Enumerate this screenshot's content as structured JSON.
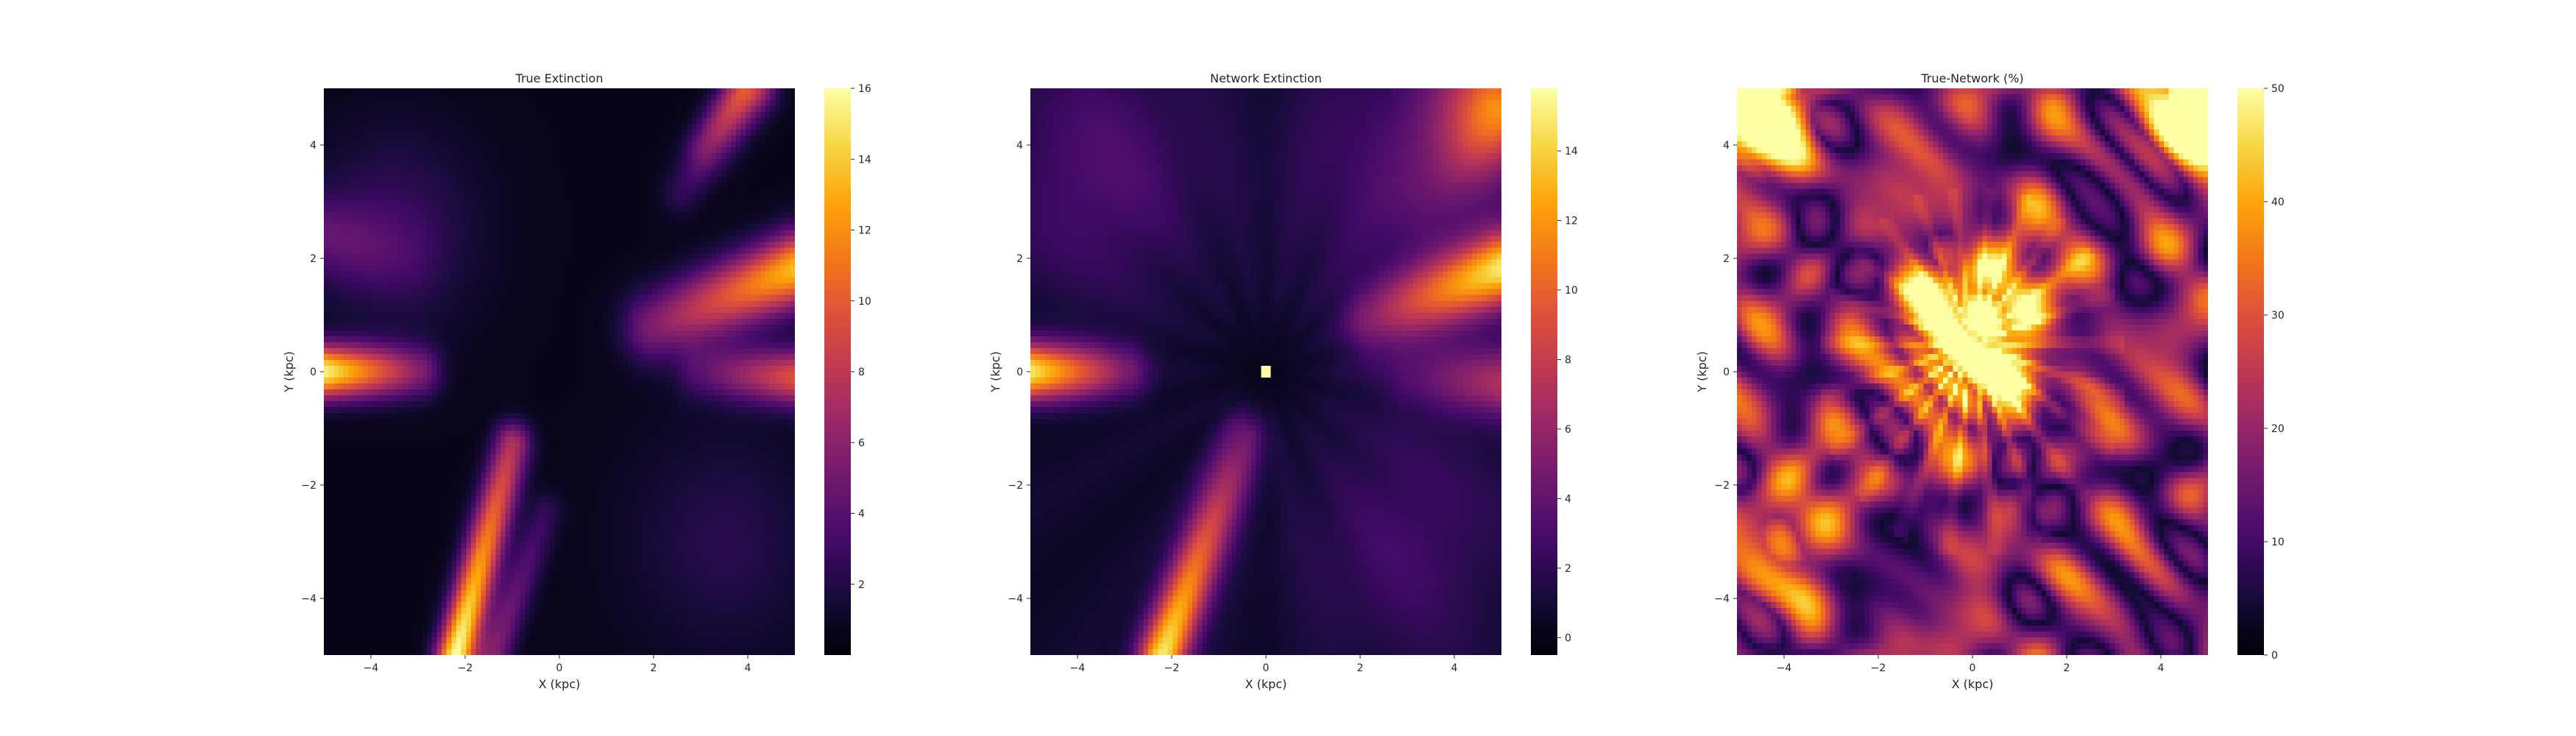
{
  "chart_data": [
    {
      "type": "heatmap",
      "title": "True Extinction",
      "xlabel": "X (kpc)",
      "ylabel": "Y (kpc)",
      "xlim": [
        -5,
        5
      ],
      "ylim": [
        -5,
        5
      ],
      "xticks": [
        -4,
        -2,
        0,
        2,
        4
      ],
      "yticks": [
        -4,
        -2,
        0,
        2,
        4
      ],
      "colormap": "inferno",
      "colorbar": {
        "vmin": 0,
        "vmax": 16,
        "ticks": [
          2,
          4,
          6,
          8,
          10,
          12,
          14,
          16
        ]
      },
      "features": [
        {
          "x": -4.3,
          "y": 0.0,
          "value": 14.5,
          "description": "bright horizontal band"
        },
        {
          "x": 3.9,
          "y": 1.3,
          "value": 13.0,
          "description": "band toward upper right"
        },
        {
          "x": 4.0,
          "y": 0.0,
          "value": 9.0,
          "description": "band toward right"
        },
        {
          "x": -2.1,
          "y": -4.5,
          "value": 15.5,
          "description": "bright diagonal streak lower left"
        },
        {
          "x": -1.0,
          "y": -1.5,
          "value": 8.0,
          "description": "streak start"
        },
        {
          "x": 3.2,
          "y": 4.2,
          "value": 6.5,
          "description": "faint streaks upper right"
        },
        {
          "x": -4.0,
          "y": 2.0,
          "value": 4.0,
          "description": "faint glow upper left"
        }
      ]
    },
    {
      "type": "heatmap",
      "title": "Network Extinction",
      "xlabel": "X (kpc)",
      "ylabel": "Y (kpc)",
      "xlim": [
        -5,
        5
      ],
      "ylim": [
        -5,
        5
      ],
      "xticks": [
        -4,
        -2,
        0,
        2,
        4
      ],
      "yticks": [
        -4,
        -2,
        0,
        2,
        4
      ],
      "colormap": "inferno",
      "colorbar": {
        "vmin": -0.5,
        "vmax": 15.8,
        "ticks": [
          0,
          2,
          4,
          6,
          8,
          10,
          12,
          14
        ]
      },
      "features": [
        {
          "x": -4.3,
          "y": 0.0,
          "value": 14.0,
          "description": "bright horizontal band"
        },
        {
          "x": 3.8,
          "y": 1.3,
          "value": 13.5,
          "description": "band toward upper right"
        },
        {
          "x": 4.5,
          "y": 4.6,
          "value": 9.0,
          "description": "corner glow upper right"
        },
        {
          "x": -2.0,
          "y": -4.5,
          "value": 14.5,
          "description": "diagonal streak lower left"
        },
        {
          "x": 0.0,
          "y": 0.0,
          "value": 15.8,
          "description": "single white pixel at origin"
        }
      ]
    },
    {
      "type": "heatmap",
      "title": "True-Network (%)",
      "xlabel": "X (kpc)",
      "ylabel": "Y (kpc)",
      "xlim": [
        -5,
        5
      ],
      "ylim": [
        -5,
        5
      ],
      "xticks": [
        -4,
        -2,
        0,
        2,
        4
      ],
      "yticks": [
        -4,
        -2,
        0,
        2,
        4
      ],
      "colormap": "inferno",
      "colorbar": {
        "vmin": 0,
        "vmax": 50,
        "ticks": [
          0,
          10,
          20,
          30,
          40,
          50
        ]
      },
      "features": [
        {
          "x": 0.0,
          "y": 0.8,
          "value": 50.0,
          "description": "saturated central blob"
        },
        {
          "x": -4.3,
          "y": 4.3,
          "value": 50.0,
          "description": "saturated upper-left corner"
        },
        {
          "x": 4.5,
          "y": 4.5,
          "value": 50.0,
          "description": "saturated upper-right corner"
        },
        {
          "x": -4.0,
          "y": -3.3,
          "value": 35.0,
          "description": "bright lower-left lobe"
        }
      ]
    }
  ]
}
